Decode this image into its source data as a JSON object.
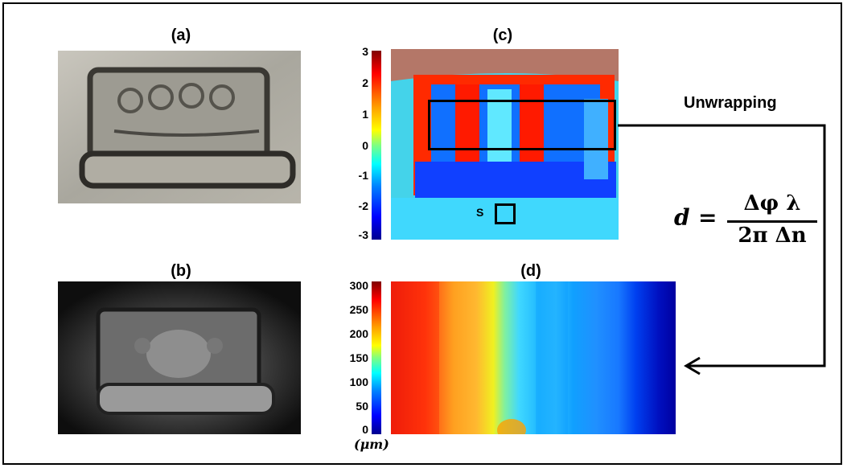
{
  "panels": {
    "a": "(a)",
    "b": "(b)",
    "c": "(c)",
    "d": "(d)"
  },
  "colorbar_c": {
    "ticks": [
      "3",
      "2",
      "1",
      "0",
      "-1",
      "-2",
      "-3"
    ]
  },
  "colorbar_d": {
    "ticks": [
      "300",
      "250",
      "200",
      "150",
      "100",
      "50",
      "0"
    ],
    "unit": "(μm)"
  },
  "annotations": {
    "unwrapping": "Unwrapping",
    "s_region": "S"
  },
  "formula": {
    "lhs": "d",
    "equals": "=",
    "numerator": "Δφ λ",
    "denominator": "2π Δn"
  },
  "colors": {
    "line": "#000000",
    "jet_low": "#00008f",
    "jet_high": "#800000"
  }
}
